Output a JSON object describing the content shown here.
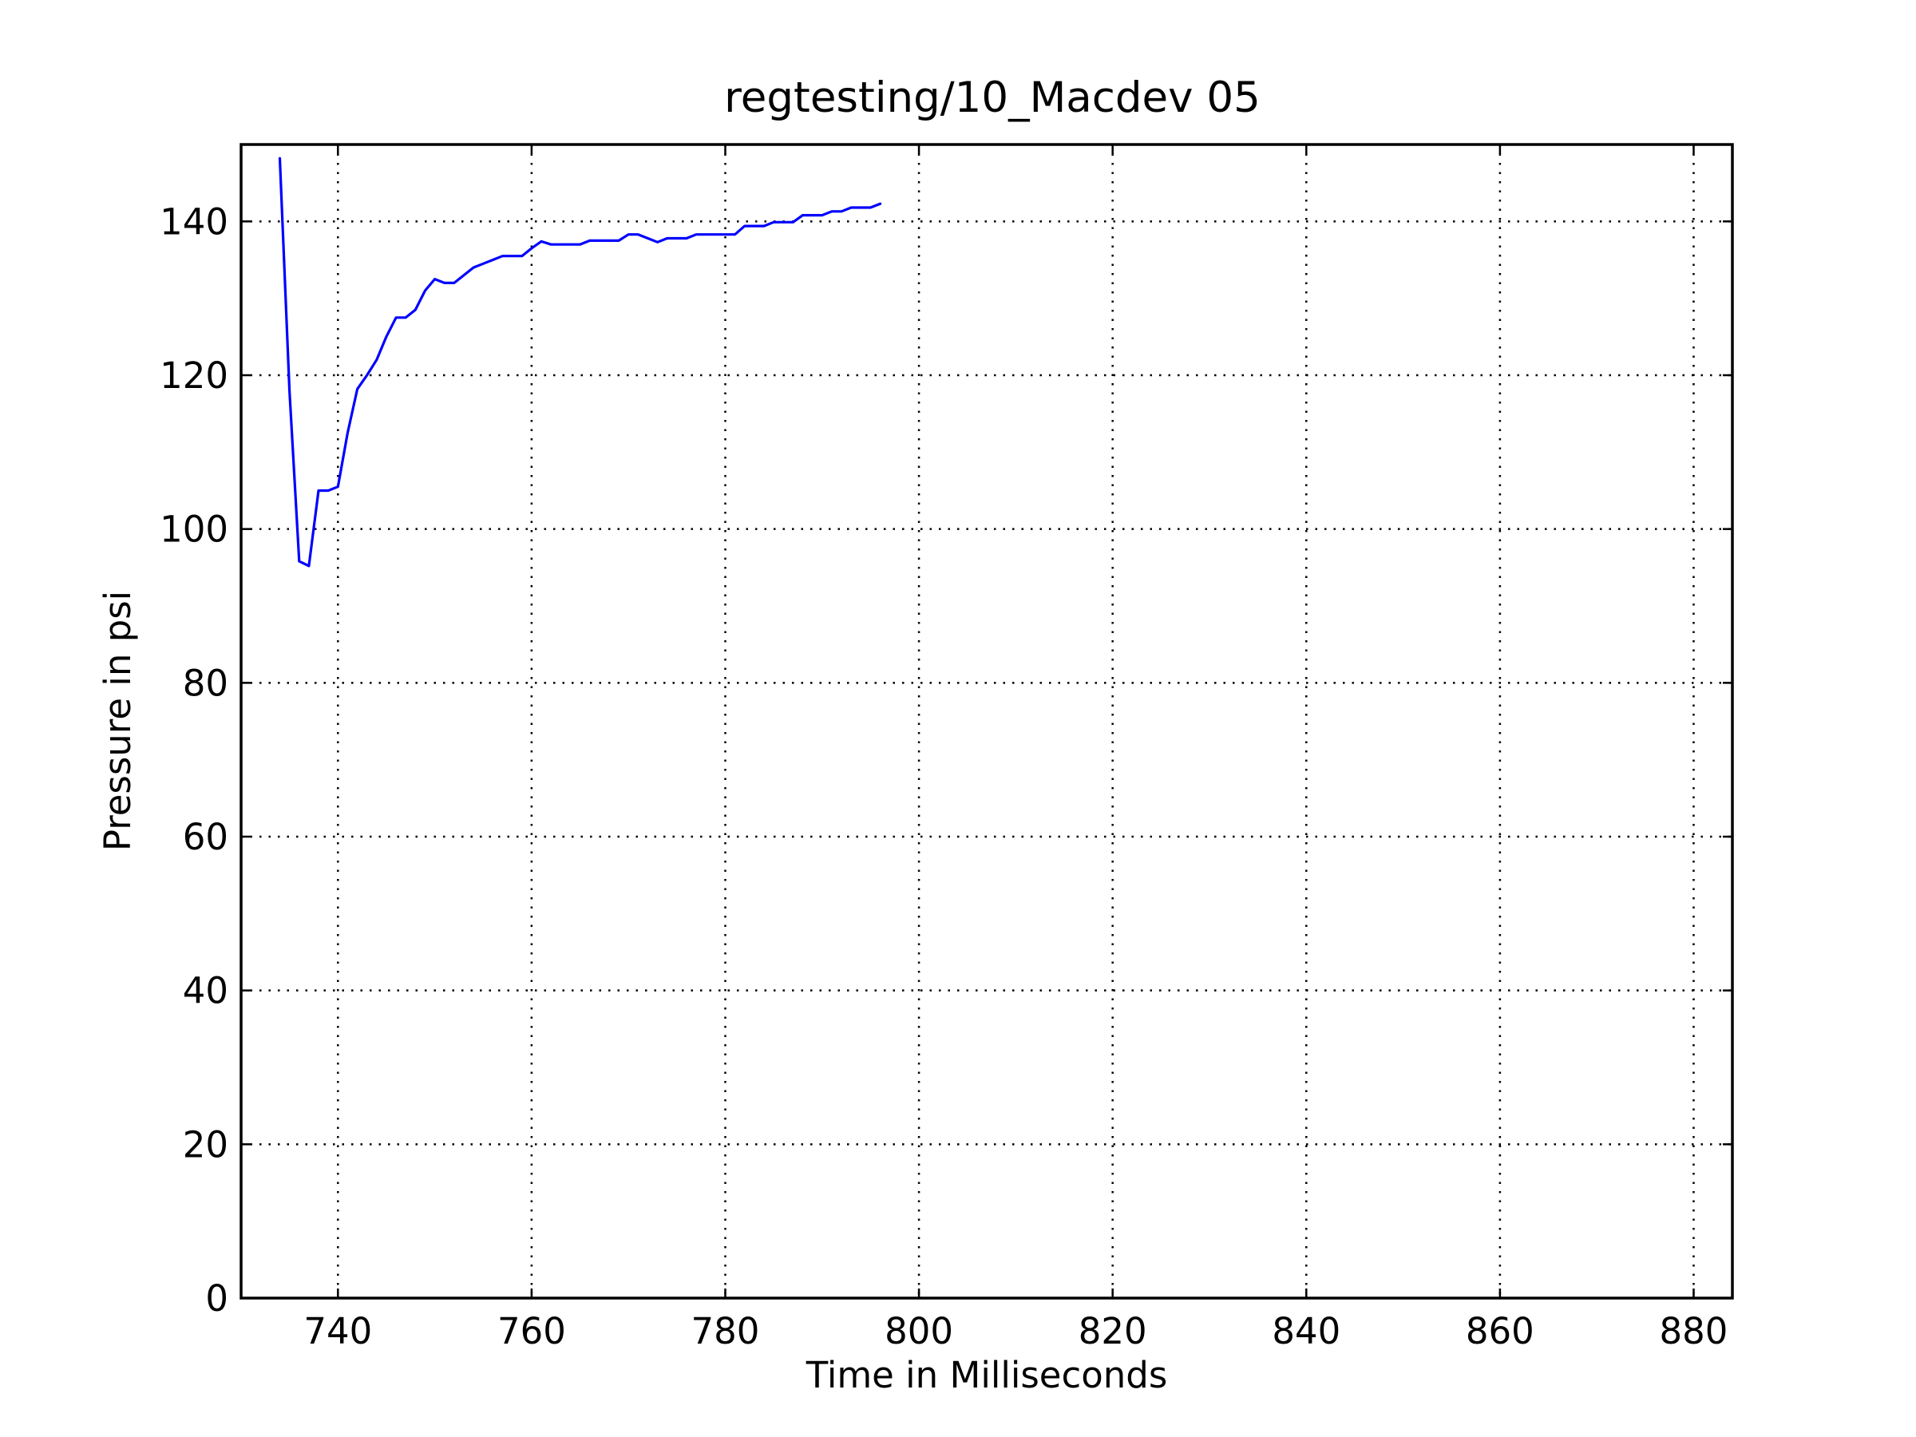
{
  "chart_data": {
    "type": "line",
    "title": "regtesting/10_Macdev 05",
    "xlabel": "Time in Milliseconds",
    "ylabel": "Pressure in psi",
    "xlim": [
      730,
      884
    ],
    "ylim": [
      0,
      150
    ],
    "xticks": [
      740,
      760,
      780,
      800,
      820,
      840,
      860,
      880
    ],
    "yticks": [
      0,
      20,
      40,
      60,
      80,
      100,
      120,
      140
    ],
    "grid": true,
    "legend": "none",
    "series": [
      {
        "color": "#0000ff",
        "x": [
          734,
          735,
          736,
          737,
          738,
          739,
          740,
          741,
          742,
          743,
          744,
          745,
          746,
          747,
          748,
          749,
          750,
          751,
          752,
          753,
          754,
          755,
          756,
          757,
          758,
          759,
          760,
          761,
          762,
          763,
          764,
          765,
          766,
          767,
          768,
          769,
          770,
          771,
          772,
          773,
          774,
          775,
          776,
          777,
          778,
          779,
          780,
          781,
          782,
          783,
          784,
          785,
          786,
          787,
          788,
          789,
          790,
          791,
          792,
          793,
          794,
          795,
          796
        ],
        "y": [
          148.2,
          118,
          95.8,
          95.2,
          105,
          105,
          105.5,
          112.5,
          118.2,
          120,
          122,
          125,
          127.5,
          127.5,
          128.5,
          131,
          132.5,
          132,
          132,
          133,
          134,
          134.5,
          135,
          135.5,
          135.5,
          135.5,
          136.5,
          137.4,
          137,
          137,
          137,
          137,
          137.5,
          137.5,
          137.5,
          137.5,
          138.3,
          138.3,
          137.8,
          137.3,
          137.8,
          137.8,
          137.8,
          138.3,
          138.3,
          138.3,
          138.3,
          138.3,
          139.4,
          139.4,
          139.4,
          139.9,
          139.9,
          139.9,
          140.8,
          140.8,
          140.8,
          141.3,
          141.3,
          141.8,
          141.8,
          141.8,
          142.3
        ]
      }
    ]
  }
}
